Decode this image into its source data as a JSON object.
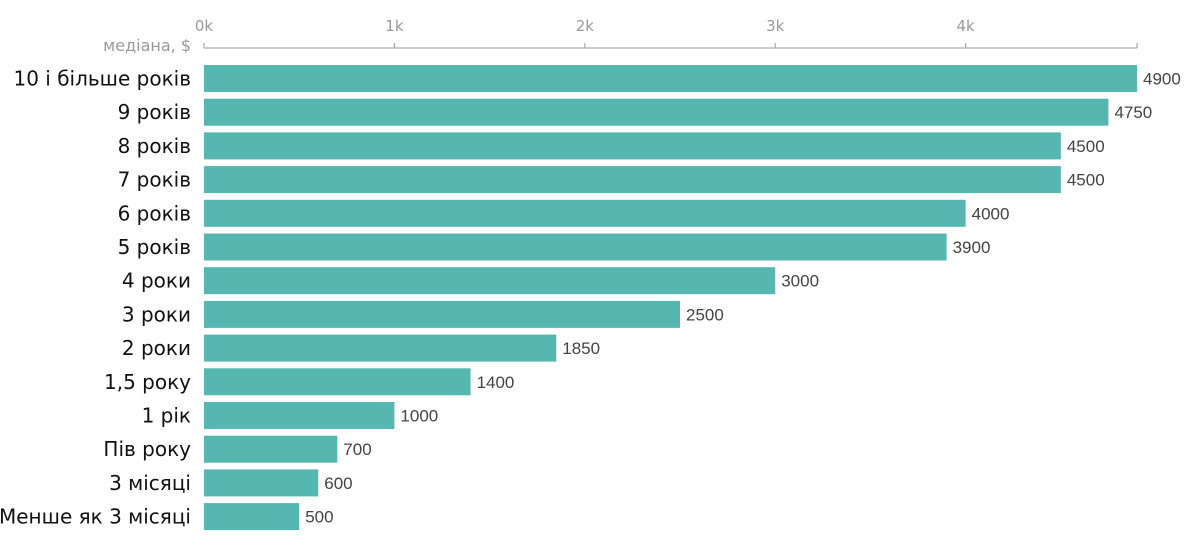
{
  "chart_data": {
    "type": "bar",
    "orientation": "horizontal",
    "ylabel": "медіана, $",
    "xlim": [
      0,
      4900
    ],
    "ticks": [
      0,
      1000,
      2000,
      3000,
      4000
    ],
    "tick_labels": [
      "0k",
      "1k",
      "2k",
      "3k",
      "4k"
    ],
    "categories": [
      "10 і більше років",
      "9 років",
      "8 років",
      "7 років",
      "6 років",
      "5 років",
      "4 роки",
      "3 роки",
      "2 роки",
      "1,5 року",
      "1 рік",
      "Пів року",
      "3 місяці",
      "Менше як 3 місяці"
    ],
    "values": [
      4900,
      4750,
      4500,
      4500,
      4000,
      3900,
      3000,
      2500,
      1850,
      1400,
      1000,
      700,
      600,
      500
    ],
    "bar_color": "#55b7b0",
    "grid": false
  }
}
